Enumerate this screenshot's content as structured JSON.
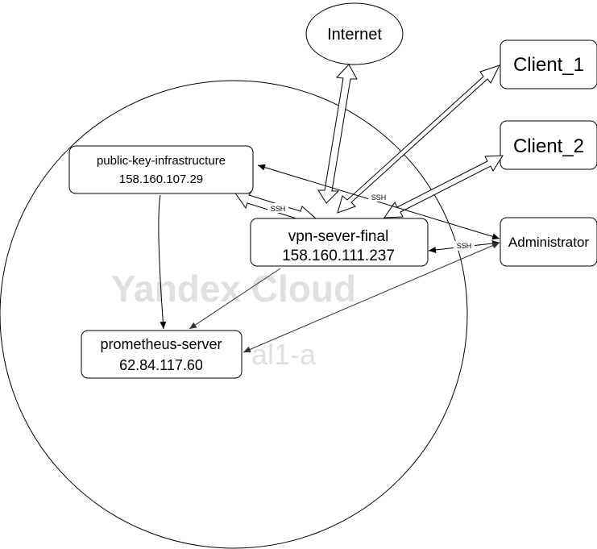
{
  "cloud": {
    "watermark": "Yandex Cloud",
    "zone_fragment": "al1-a"
  },
  "nodes": {
    "internet": {
      "label": "Internet"
    },
    "client_1": {
      "label": "Client_1"
    },
    "client_2": {
      "label": "Client_2"
    },
    "administrator": {
      "label": "Administrator"
    },
    "pki": {
      "name": "public-key-infrastructure",
      "ip": "158.160.107.29"
    },
    "vpn": {
      "name": "vpn-sever-final",
      "ip": "158.160.111.237"
    },
    "prometheus": {
      "name": "prometheus-server",
      "ip": "62.84.117.60"
    }
  },
  "edges": {
    "ssh_pki_vpn": "SSH",
    "ssh_pki_admin": "SSH",
    "ssh_vpn_admin": "SSH"
  }
}
